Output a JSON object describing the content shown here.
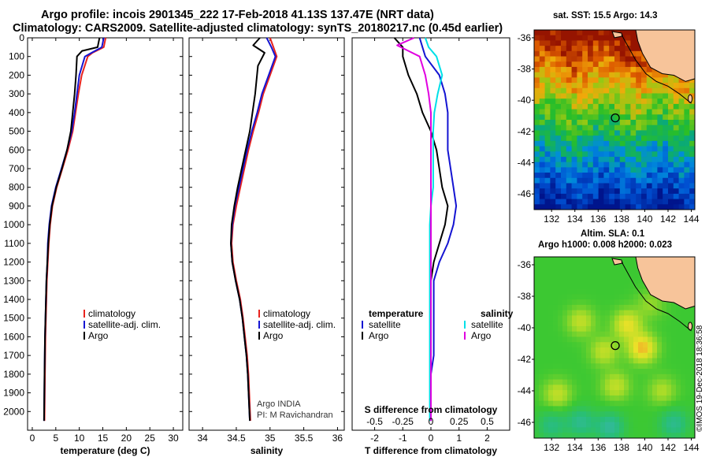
{
  "title_line1": "Argo profile: incois 2901345_222 17-Feb-2018 41.13S 137.47E (NRT data)",
  "title_line2": "Climatology: CARS2009. Satellite-adjusted climatology: synTS_20180217.nc (0.45d earlier)",
  "map1_title": "sat. SST: 15.5 Argo: 14.3",
  "map2_title_line1": "Altim. SLA: 0.1",
  "map2_title_line2": "Argo h1000: 0.008 h2000: 0.023",
  "timestamp": "©IMOS 19-Dec-2018 18:36:58",
  "colors": {
    "climatology": "#e8231e",
    "satellite": "#1414d2",
    "argo": "#000000",
    "satellite_sal": "#00e0e8",
    "argo_sal": "#e000e0",
    "land": "#f7c49a"
  },
  "chart_data": [
    {
      "type": "line",
      "name": "temperature",
      "xlabel": "temperature (deg C)",
      "ylabel": "",
      "xlim": [
        -1,
        32
      ],
      "ylim": [
        2100,
        0
      ],
      "xticks": [
        0,
        5,
        10,
        15,
        20,
        25,
        30
      ],
      "yticks": [
        0,
        100,
        200,
        300,
        400,
        500,
        600,
        700,
        800,
        900,
        1000,
        1100,
        1200,
        1300,
        1400,
        1500,
        1600,
        1700,
        1800,
        1900,
        2000
      ],
      "legend": {
        "position": "center-right",
        "entries": [
          "climatology",
          "satellite-adj. clim.",
          "Argo"
        ]
      },
      "series": [
        {
          "name": "climatology",
          "color": "#e8231e",
          "x": [
            15.6,
            15.2,
            12.8,
            11.8,
            10.5,
            9.8,
            9.2,
            8.6,
            7.6,
            6.4,
            5.2,
            4.3,
            3.8,
            3.5,
            3.3,
            3.1,
            3.0,
            2.9,
            2.8,
            2.7,
            2.6
          ],
          "y": [
            0,
            50,
            80,
            100,
            200,
            300,
            400,
            500,
            600,
            700,
            800,
            900,
            1000,
            1100,
            1200,
            1300,
            1400,
            1500,
            1600,
            1800,
            2050
          ]
        },
        {
          "name": "satellite-adj. clim.",
          "color": "#1414d2",
          "x": [
            15.2,
            14.8,
            12.6,
            11.2,
            10.0,
            9.5,
            9.0,
            8.4,
            7.4,
            6.2,
            5.0,
            4.1,
            3.6,
            3.3,
            3.2,
            3.0,
            2.9,
            2.8,
            2.7,
            2.6,
            2.5
          ],
          "y": [
            0,
            50,
            80,
            100,
            200,
            300,
            400,
            500,
            600,
            700,
            800,
            900,
            1000,
            1100,
            1200,
            1300,
            1400,
            1500,
            1600,
            1800,
            2050
          ]
        },
        {
          "name": "Argo",
          "color": "#000000",
          "x": [
            14.3,
            13.9,
            10.6,
            9.5,
            9.3,
            9.0,
            8.6,
            8.2,
            7.4,
            6.3,
            5.1,
            4.2,
            3.7,
            3.4,
            3.2,
            3.0,
            2.9,
            2.8,
            2.7,
            2.6,
            2.5
          ],
          "y": [
            0,
            50,
            70,
            100,
            200,
            300,
            400,
            500,
            600,
            700,
            800,
            900,
            1000,
            1100,
            1200,
            1300,
            1400,
            1500,
            1600,
            1800,
            2050
          ]
        }
      ]
    },
    {
      "type": "line",
      "name": "salinity",
      "xlabel": "salinity",
      "ylabel": "",
      "xlim": [
        33.8,
        36.1
      ],
      "ylim": [
        2100,
        0
      ],
      "xticks": [
        34,
        34.5,
        35,
        35.5,
        36
      ],
      "yticks": [
        0,
        100,
        200,
        300,
        400,
        500,
        600,
        700,
        800,
        900,
        1000,
        1100,
        1200,
        1300,
        1400,
        1500,
        1600,
        1700,
        1800,
        1900,
        2000
      ],
      "legend": {
        "position": "center-right",
        "entries": [
          "climatology",
          "satellite-adj. clim.",
          "Argo"
        ]
      },
      "annotation": [
        "Argo INDIA",
        "PI: M Ravichandran"
      ],
      "series": [
        {
          "name": "climatology",
          "color": "#e8231e",
          "x": [
            35.0,
            35.05,
            35.1,
            35.0,
            34.9,
            34.83,
            34.75,
            34.68,
            34.62,
            34.56,
            34.5,
            34.45,
            34.43,
            34.45,
            34.5,
            34.56,
            34.6,
            34.63,
            34.66,
            34.68,
            34.71
          ],
          "y": [
            0,
            50,
            100,
            200,
            300,
            400,
            500,
            600,
            700,
            800,
            900,
            1000,
            1100,
            1200,
            1300,
            1400,
            1500,
            1600,
            1700,
            1800,
            2050
          ]
        },
        {
          "name": "satellite-adj. clim.",
          "color": "#1414d2",
          "x": [
            34.95,
            35.02,
            35.08,
            34.98,
            34.88,
            34.81,
            34.73,
            34.66,
            34.6,
            34.54,
            34.48,
            34.44,
            34.42,
            34.44,
            34.49,
            34.55,
            34.59,
            34.62,
            34.65,
            34.67,
            34.7
          ],
          "y": [
            0,
            50,
            100,
            200,
            300,
            400,
            500,
            600,
            700,
            800,
            900,
            1000,
            1100,
            1200,
            1300,
            1400,
            1500,
            1600,
            1700,
            1800,
            2050
          ]
        },
        {
          "name": "Argo",
          "color": "#000000",
          "x": [
            34.85,
            34.75,
            34.92,
            34.82,
            34.78,
            34.74,
            34.7,
            34.64,
            34.58,
            34.52,
            34.47,
            34.43,
            34.42,
            34.44,
            34.49,
            34.55,
            34.59,
            34.62,
            34.65,
            34.67,
            34.7
          ],
          "y": [
            0,
            40,
            80,
            150,
            300,
            400,
            500,
            600,
            700,
            800,
            900,
            1000,
            1100,
            1200,
            1300,
            1400,
            1500,
            1600,
            1700,
            1800,
            2050
          ]
        }
      ]
    },
    {
      "type": "line",
      "name": "difference",
      "xlabel": "T difference from climatology",
      "xlabel_top": "S difference from climatology",
      "ylabel": "",
      "xlim": [
        -2.8,
        2.8
      ],
      "ylim": [
        2100,
        0
      ],
      "xticks": [
        -2,
        -1,
        0,
        1,
        2
      ],
      "xticks_salinity": [
        "-0.5",
        "-0.25",
        "0",
        "0.25",
        "0.5"
      ],
      "legend": {
        "position": "center",
        "entries_temperature": [
          "temperature",
          "satellite",
          "Argo"
        ],
        "entries_salinity": [
          "salinity",
          "satellite",
          "Argo"
        ]
      },
      "series": [
        {
          "name": "temperature satellite",
          "color": "#1414d2",
          "x": [
            -0.4,
            -0.3,
            -0.2,
            0.3,
            0.5,
            0.6,
            0.6,
            0.6,
            0.7,
            0.8,
            0.9,
            0.8,
            0.6,
            0.3,
            0.1,
            0.1,
            0.1,
            0.1,
            0.1,
            0.0,
            0.0
          ],
          "y": [
            0,
            50,
            100,
            200,
            300,
            400,
            500,
            600,
            700,
            800,
            900,
            1000,
            1100,
            1200,
            1300,
            1400,
            1500,
            1600,
            1700,
            1800,
            2050
          ]
        },
        {
          "name": "temperature Argo",
          "color": "#000000",
          "x": [
            -1.3,
            -1.0,
            -1.0,
            -0.8,
            -0.5,
            -0.3,
            0.0,
            0.2,
            0.3,
            0.4,
            0.6,
            0.5,
            0.3,
            0.1,
            0.0,
            0.0,
            0.0,
            0.0,
            0.0,
            0.0,
            0.0
          ],
          "y": [
            0,
            50,
            100,
            200,
            300,
            400,
            500,
            600,
            700,
            800,
            900,
            1000,
            1100,
            1200,
            1300,
            1400,
            1500,
            1600,
            1700,
            1800,
            2050
          ]
        },
        {
          "name": "salinity satellite",
          "color": "#00e0e8",
          "x": [
            -0.05,
            -0.02,
            0.05,
            0.1,
            0.06,
            0.03,
            0.02,
            0.02,
            0.02,
            0.02,
            0.0,
            -0.01,
            -0.01,
            -0.01,
            -0.01,
            -0.01,
            -0.01,
            -0.01,
            -0.01,
            -0.01,
            -0.01
          ],
          "y": [
            0,
            50,
            100,
            200,
            300,
            400,
            500,
            600,
            700,
            800,
            900,
            1000,
            1100,
            1200,
            1300,
            1400,
            1500,
            1600,
            1700,
            1800,
            2050
          ]
        },
        {
          "name": "salinity Argo",
          "color": "#e000e0",
          "x": [
            -0.15,
            -0.3,
            -0.1,
            -0.05,
            -0.02,
            0.0,
            0.0,
            0.0,
            0.0,
            0.0,
            0.0,
            0.0,
            0.0,
            0.0,
            0.0,
            0.0,
            0.0,
            0.0,
            0.0,
            0.0,
            0.0
          ],
          "y": [
            0,
            40,
            100,
            200,
            300,
            400,
            500,
            600,
            700,
            800,
            900,
            1000,
            1100,
            1200,
            1300,
            1400,
            1500,
            1600,
            1700,
            1800,
            2050
          ]
        }
      ]
    },
    {
      "type": "heatmap",
      "name": "sst-map",
      "title": "sat. SST: 15.5 Argo: 14.3",
      "xlim": [
        130.5,
        144.3
      ],
      "ylim": [
        -47,
        -35.5
      ],
      "xticks": [
        132,
        134,
        136,
        138,
        140,
        142,
        144
      ],
      "yticks": [
        -36,
        -38,
        -40,
        -42,
        -44,
        -46
      ],
      "argo_position": {
        "lon": 137.47,
        "lat": -41.13
      }
    },
    {
      "type": "heatmap",
      "name": "sla-map",
      "title": "Altim. SLA: 0.1",
      "xlim": [
        130.5,
        144.3
      ],
      "ylim": [
        -47,
        -35.5
      ],
      "xticks": [
        132,
        134,
        136,
        138,
        140,
        142,
        144
      ],
      "yticks": [
        -36,
        -38,
        -40,
        -42,
        -44,
        -46
      ],
      "argo_position": {
        "lon": 137.47,
        "lat": -41.13
      }
    }
  ]
}
